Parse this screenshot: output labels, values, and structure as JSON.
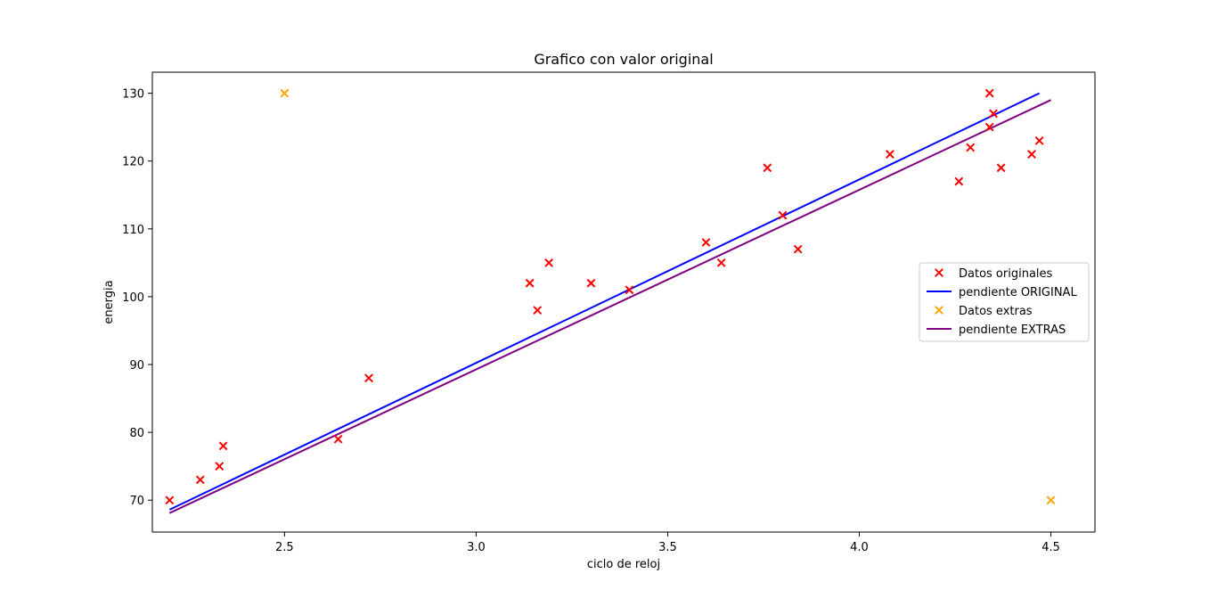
{
  "chart_data": {
    "type": "scatter",
    "title": "Grafico con valor original",
    "xlabel": "ciclo de reloj",
    "ylabel": "energia",
    "xlim": [
      2.155,
      4.615
    ],
    "ylim": [
      65.3,
      133.1
    ],
    "xticks": [
      2.5,
      3.0,
      3.5,
      4.0,
      4.5
    ],
    "xtick_labels": [
      "2.5",
      "3.0",
      "3.5",
      "4.0",
      "4.5"
    ],
    "yticks": [
      70,
      80,
      90,
      100,
      110,
      120,
      130
    ],
    "ytick_labels": [
      "70",
      "80",
      "90",
      "100",
      "110",
      "120",
      "130"
    ],
    "grid": false,
    "legend_position": "center-right",
    "series": [
      {
        "name": "Datos originales",
        "kind": "scatter",
        "marker": "x",
        "color": "#ff0000",
        "points": [
          {
            "x": 2.2,
            "y": 70
          },
          {
            "x": 2.28,
            "y": 73
          },
          {
            "x": 2.33,
            "y": 75
          },
          {
            "x": 2.34,
            "y": 78
          },
          {
            "x": 2.64,
            "y": 79
          },
          {
            "x": 2.72,
            "y": 88
          },
          {
            "x": 3.14,
            "y": 102
          },
          {
            "x": 3.16,
            "y": 98
          },
          {
            "x": 3.19,
            "y": 105
          },
          {
            "x": 3.3,
            "y": 102
          },
          {
            "x": 3.4,
            "y": 101
          },
          {
            "x": 3.6,
            "y": 108
          },
          {
            "x": 3.64,
            "y": 105
          },
          {
            "x": 3.76,
            "y": 119
          },
          {
            "x": 3.8,
            "y": 112
          },
          {
            "x": 3.84,
            "y": 107
          },
          {
            "x": 4.08,
            "y": 121
          },
          {
            "x": 4.26,
            "y": 117
          },
          {
            "x": 4.29,
            "y": 122
          },
          {
            "x": 4.34,
            "y": 130
          },
          {
            "x": 4.34,
            "y": 125
          },
          {
            "x": 4.35,
            "y": 127
          },
          {
            "x": 4.37,
            "y": 119
          },
          {
            "x": 4.45,
            "y": 121
          },
          {
            "x": 4.47,
            "y": 123
          }
        ]
      },
      {
        "name": "pendiente ORIGINAL",
        "kind": "line",
        "color": "#0000ff",
        "points": [
          {
            "x": 2.2,
            "y": 68.6
          },
          {
            "x": 4.47,
            "y": 130.0
          }
        ]
      },
      {
        "name": "Datos extras",
        "kind": "scatter",
        "marker": "x",
        "color": "#ffa500",
        "points": [
          {
            "x": 2.5,
            "y": 130
          },
          {
            "x": 4.5,
            "y": 70
          }
        ]
      },
      {
        "name": "pendiente EXTRAS",
        "kind": "line",
        "color": "#800080",
        "points": [
          {
            "x": 2.2,
            "y": 68.1
          },
          {
            "x": 4.5,
            "y": 129.0
          }
        ]
      }
    ]
  }
}
